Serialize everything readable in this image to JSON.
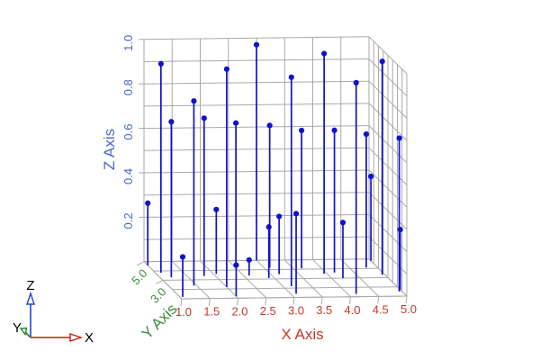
{
  "chart_data": {
    "type": "scatter",
    "subtype": "stem3d",
    "title": "",
    "axes": {
      "x": {
        "label": "X Axis",
        "color": "#c2392b",
        "range": [
          1,
          5
        ],
        "tick_values": [
          1.0,
          1.5,
          2.0,
          2.5,
          3.0,
          3.5,
          4.0,
          4.5,
          5.0
        ],
        "tick_labels": [
          "1.0",
          "1.5",
          "2.0",
          "2.5",
          "3.0",
          "3.5",
          "4.0",
          "4.5",
          "5.0"
        ]
      },
      "y": {
        "label": "Y Axis",
        "color": "#3a8c3a",
        "range": [
          1,
          5
        ],
        "tick_values": [
          3.0,
          5.0
        ],
        "tick_labels": [
          "3.0",
          "5.0"
        ]
      },
      "z": {
        "label": "Z Axis",
        "color": "#4a67c8",
        "range": [
          0,
          1
        ],
        "tick_values": [
          0.2,
          0.4,
          0.6,
          0.8,
          1.0
        ],
        "tick_labels": [
          "0.2",
          "0.4",
          "0.6",
          "0.8",
          "1.0"
        ]
      }
    },
    "grid": {
      "on": true,
      "color": "#a9a9a9",
      "z_step": 0.1,
      "x_step": 0.5,
      "y_wall_step": 0.5,
      "y_floor_step": 1.0
    },
    "stem_color": "#1111cc",
    "marker_color": "#1111cc",
    "points_xyz": [
      [
        1.05,
        1.2,
        0.18
      ],
      [
        1.2,
        3.3,
        0.7
      ],
      [
        1.1,
        3.8,
        0.94
      ],
      [
        1.0,
        4.6,
        0.28
      ],
      [
        1.45,
        2.4,
        0.83
      ],
      [
        1.8,
        3.4,
        0.71
      ],
      [
        2.0,
        2.2,
        0.98
      ],
      [
        2.0,
        1.2,
        0.14
      ],
      [
        2.55,
        4.5,
        0.64
      ],
      [
        2.05,
        3.6,
        0.29
      ],
      [
        2.6,
        3.4,
        0.07
      ],
      [
        3.0,
        5.0,
        0.97
      ],
      [
        3.1,
        4.2,
        0.64
      ],
      [
        2.9,
        3.1,
        0.23
      ],
      [
        3.15,
        3.5,
        0.26
      ],
      [
        3.15,
        2.2,
        0.94
      ],
      [
        3.1,
        1.4,
        0.36
      ],
      [
        3.65,
        4.1,
        0.62
      ],
      [
        3.95,
        3.5,
        0.99
      ],
      [
        4.15,
        3.6,
        0.64
      ],
      [
        4.2,
        3.0,
        0.25
      ],
      [
        4.15,
        1.3,
        0.95
      ],
      [
        4.8,
        4.1,
        0.6
      ],
      [
        5.0,
        4.8,
        0.38
      ],
      [
        4.95,
        3.3,
        0.96
      ],
      [
        4.95,
        1.5,
        0.69
      ],
      [
        5.0,
        1.7,
        0.27
      ]
    ]
  },
  "orientation_widget": {
    "x_label": "X",
    "y_label": "Y",
    "z_label": "Z",
    "x_color": "#bb2211",
    "y_color": "#228822",
    "z_color": "#2244cc",
    "label_color": "#000000"
  }
}
